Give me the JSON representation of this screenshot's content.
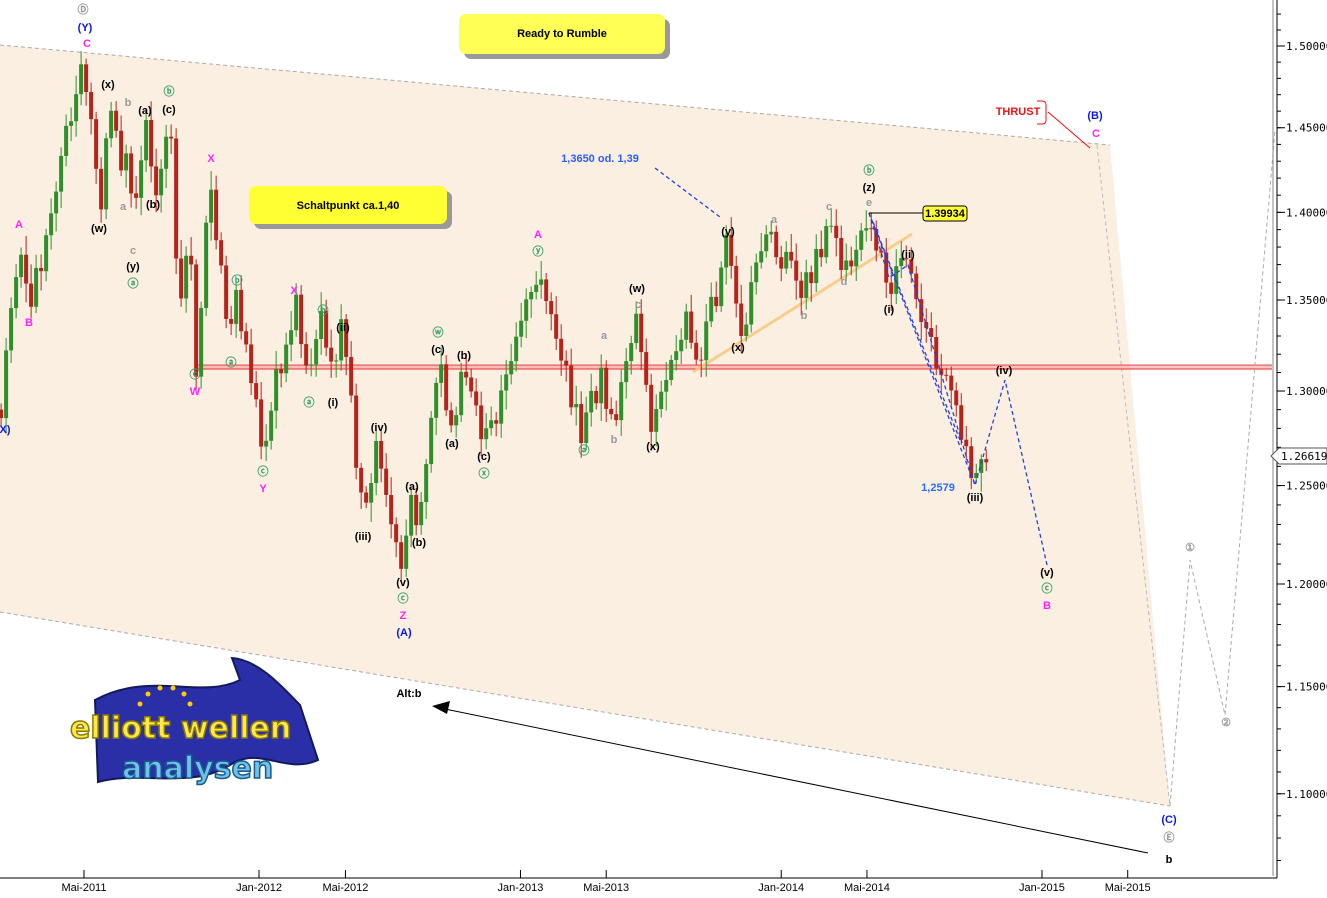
{
  "chart_data": {
    "type": "candlestick",
    "title": "Ready to Rumble",
    "y_scale": "log",
    "ylim": [
      1.065,
      1.53
    ],
    "y_ticks": [
      1.5,
      1.45,
      1.4,
      1.35,
      1.3,
      1.25,
      1.2,
      1.15,
      1.1
    ],
    "y_tick_labels": [
      "1.50000",
      "1.45000",
      "1.40000",
      "1.35000",
      "1.30000",
      "1.25000",
      "1.20000",
      "1.15000",
      "1.10000"
    ],
    "x_ticks": [
      {
        "date": "2011-05-01",
        "label": "Mai-2011"
      },
      {
        "date": "2012-01-01",
        "label": "Jan-2012"
      },
      {
        "date": "2012-05-01",
        "label": "Mai-2012"
      },
      {
        "date": "2013-01-01",
        "label": "Jan-2013"
      },
      {
        "date": "2013-05-01",
        "label": "Mai-2013"
      },
      {
        "date": "2014-01-01",
        "label": "Jan-2014"
      },
      {
        "date": "2014-05-01",
        "label": "Mai-2014"
      },
      {
        "date": "2015-01-01",
        "label": "Jan-2015"
      },
      {
        "date": "2015-05-01",
        "label": "Mai-2015"
      }
    ],
    "last_price": "1.26619",
    "pivots": [
      [
        "2011-01-05",
        1.29
      ],
      [
        "2011-02-01",
        1.384
      ],
      [
        "2011-02-15",
        1.344
      ],
      [
        "2011-04-30",
        1.494
      ],
      [
        "2011-05-24",
        1.398
      ],
      [
        "2011-06-04",
        1.47
      ],
      [
        "2011-06-25",
        1.41
      ],
      [
        "2011-07-02",
        1.455
      ],
      [
        "2011-07-09",
        1.384
      ],
      [
        "2011-07-26",
        1.455
      ],
      [
        "2011-08-06",
        1.41
      ],
      [
        "2011-08-30",
        1.455
      ],
      [
        "2011-09-11",
        1.34
      ],
      [
        "2011-09-27",
        1.39
      ],
      [
        "2011-10-04",
        1.31
      ],
      [
        "2011-10-25",
        1.42
      ],
      [
        "2011-11-21",
        1.32
      ],
      [
        "2011-11-30",
        1.36
      ],
      [
        "2012-01-07",
        1.262
      ],
      [
        "2012-01-30",
        1.315
      ],
      [
        "2012-02-20",
        1.349
      ],
      [
        "2012-03-12",
        1.31
      ],
      [
        "2012-03-29",
        1.345
      ],
      [
        "2012-04-13",
        1.31
      ],
      [
        "2012-04-27",
        1.335
      ],
      [
        "2012-05-25",
        1.232
      ],
      [
        "2012-06-15",
        1.274
      ],
      [
        "2012-07-20",
        1.204
      ],
      [
        "2012-08-02",
        1.25
      ],
      [
        "2012-08-10",
        1.23
      ],
      [
        "2012-09-10",
        1.318
      ],
      [
        "2012-09-27",
        1.28
      ],
      [
        "2012-10-14",
        1.315
      ],
      [
        "2012-11-11",
        1.268
      ],
      [
        "2013-01-27",
        1.371
      ],
      [
        "2013-03-28",
        1.277
      ],
      [
        "2013-04-25",
        1.31
      ],
      [
        "2013-05-09",
        1.28
      ],
      [
        "2013-06-12",
        1.343
      ],
      [
        "2013-07-05",
        1.28
      ],
      [
        "2013-08-25",
        1.34
      ],
      [
        "2013-09-04",
        1.31
      ],
      [
        "2013-10-19",
        1.383
      ],
      [
        "2013-11-02",
        1.33
      ],
      [
        "2013-12-18",
        1.39
      ],
      [
        "2014-01-29",
        1.35
      ],
      [
        "2014-03-08",
        1.395
      ],
      [
        "2014-03-29",
        1.37
      ],
      [
        "2014-05-08",
        1.39934
      ],
      [
        "2014-05-29",
        1.35
      ],
      [
        "2014-06-24",
        1.37
      ],
      [
        "2014-08-29",
        1.29
      ],
      [
        "2014-09-26",
        1.2579
      ],
      [
        "2014-10-17",
        1.26619
      ]
    ],
    "horizontal_levels": [
      1.312,
      1.314
    ],
    "high_marker": "1.39934",
    "low_note": "1,2579",
    "target_note": "1,3650 od. 1,39",
    "switch_box": "Schaltpunkt ca.1,40",
    "alt_label": "Alt:b",
    "thrust_label": "THRUST",
    "wave_labels": [
      {
        "text": "Ⓓ",
        "style": "gray"
      },
      {
        "text": "(Y)",
        "style": "blue"
      },
      {
        "text": "C",
        "style": "magenta"
      },
      {
        "text": "A",
        "style": "magenta"
      },
      {
        "text": "B",
        "style": "magenta"
      },
      {
        "text": "X)",
        "style": "blue"
      },
      {
        "text": "(x)",
        "style": "black"
      },
      {
        "text": "b",
        "style": "gray"
      },
      {
        "text": "(a)",
        "style": "black"
      },
      {
        "text": "ⓑ",
        "style": "green"
      },
      {
        "text": "(c)",
        "style": "black"
      },
      {
        "text": "a",
        "style": "gray"
      },
      {
        "text": "(b)",
        "style": "black"
      },
      {
        "text": "(w)",
        "style": "black"
      },
      {
        "text": "c",
        "style": "gray"
      },
      {
        "text": "(y)",
        "style": "black"
      },
      {
        "text": "ⓐ",
        "style": "green"
      },
      {
        "text": "X",
        "style": "magenta"
      },
      {
        "text": "ⓑ",
        "style": "green"
      },
      {
        "text": "X",
        "style": "magenta"
      },
      {
        "text": "ⓑ",
        "style": "green"
      },
      {
        "text": "(ii)",
        "style": "black"
      },
      {
        "text": "ⓐ",
        "style": "green"
      },
      {
        "text": "ⓒ",
        "style": "green"
      },
      {
        "text": "W",
        "style": "magenta"
      },
      {
        "text": "ⓐ",
        "style": "green"
      },
      {
        "text": "(i)",
        "style": "black"
      },
      {
        "text": "(iv)",
        "style": "black"
      },
      {
        "text": "ⓒ",
        "style": "green"
      },
      {
        "text": "Y",
        "style": "magenta"
      },
      {
        "text": "(iii)",
        "style": "black"
      },
      {
        "text": "(a)",
        "style": "black"
      },
      {
        "text": "(b)",
        "style": "black"
      },
      {
        "text": "(v)",
        "style": "black"
      },
      {
        "text": "ⓒ",
        "style": "green"
      },
      {
        "text": "Z",
        "style": "magenta"
      },
      {
        "text": "(A)",
        "style": "blue"
      },
      {
        "text": "ⓦ",
        "style": "green"
      },
      {
        "text": "(c)",
        "style": "black"
      },
      {
        "text": "(b)",
        "style": "black"
      },
      {
        "text": "(a)",
        "style": "black"
      },
      {
        "text": "(c)",
        "style": "black"
      },
      {
        "text": "ⓧ",
        "style": "green"
      },
      {
        "text": "A",
        "style": "magenta"
      },
      {
        "text": "ⓨ",
        "style": "green"
      },
      {
        "text": "a",
        "style": "gray"
      },
      {
        "text": "b",
        "style": "gray"
      },
      {
        "text": "ⓐ",
        "style": "green"
      },
      {
        "text": "(w)",
        "style": "black"
      },
      {
        "text": "c",
        "style": "gray"
      },
      {
        "text": "(x)",
        "style": "black"
      },
      {
        "text": "(y)",
        "style": "black"
      },
      {
        "text": "(x)",
        "style": "black"
      },
      {
        "text": "a",
        "style": "gray"
      },
      {
        "text": "c",
        "style": "gray"
      },
      {
        "text": "d",
        "style": "gray"
      },
      {
        "text": "b",
        "style": "gray"
      },
      {
        "text": "ⓑ",
        "style": "green"
      },
      {
        "text": "(z)",
        "style": "black"
      },
      {
        "text": "e",
        "style": "gray"
      },
      {
        "text": "(ii)",
        "style": "black"
      },
      {
        "text": "(i)",
        "style": "black"
      },
      {
        "text": "(iv)",
        "style": "black"
      },
      {
        "text": "(iii)",
        "style": "black"
      },
      {
        "text": "(v)",
        "style": "black"
      },
      {
        "text": "ⓒ",
        "style": "green"
      },
      {
        "text": "B",
        "style": "magenta"
      },
      {
        "text": "①",
        "style": "gray"
      },
      {
        "text": "②",
        "style": "gray"
      },
      {
        "text": "(C)",
        "style": "blue"
      },
      {
        "text": "Ⓔ",
        "style": "gray"
      },
      {
        "text": "b",
        "style": "bigblack"
      },
      {
        "text": "(B)",
        "style": "blue"
      },
      {
        "text": "C",
        "style": "magenta"
      }
    ]
  },
  "logo": {
    "line1": "elliott wellen",
    "line2": "analysen"
  },
  "colors": {
    "up": "#2f8f2a",
    "down": "#b5231b",
    "channel_fill": "#fbefe2",
    "level": "#e8282a",
    "trend": "#f8c880",
    "projection": "#2440e0",
    "blue": "#0a18e8",
    "magenta": "#ff20ff",
    "green": "#3aa06a",
    "gray": "#9a9a9a",
    "box": "#ffff40"
  }
}
